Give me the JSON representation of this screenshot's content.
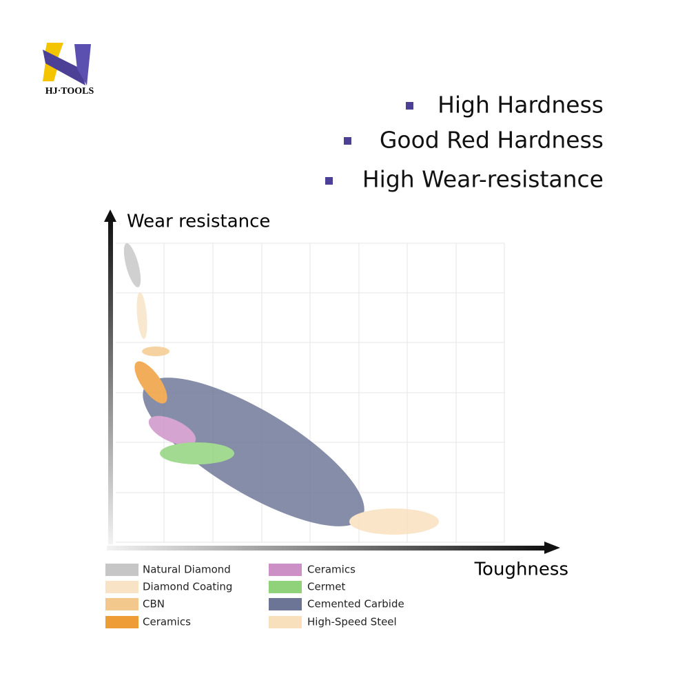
{
  "logo": {
    "text": "HJ·TOOLS"
  },
  "features": [
    "High Hardness",
    "Good Red Hardness",
    "High Wear-resistance"
  ],
  "diagram": {
    "y_axis_label": "Wear resistance",
    "x_axis_label": "Toughness",
    "legend": [
      {
        "name": "Natural Diamond",
        "color": "#c6c6c6"
      },
      {
        "name": "Diamond Coating",
        "color": "#f8e3c6"
      },
      {
        "name": "CBN",
        "color": "#f3c88c"
      },
      {
        "name": "Ceramics",
        "color": "#ee9c36"
      },
      {
        "name": "Ceramics",
        "color": "#cc90c6"
      },
      {
        "name": "Cermet",
        "color": "#8fd27a"
      },
      {
        "name": "Cemented Carbide",
        "color": "#6c7595"
      },
      {
        "name": "High-Speed Steel",
        "color": "#f9e0bd"
      }
    ]
  }
}
